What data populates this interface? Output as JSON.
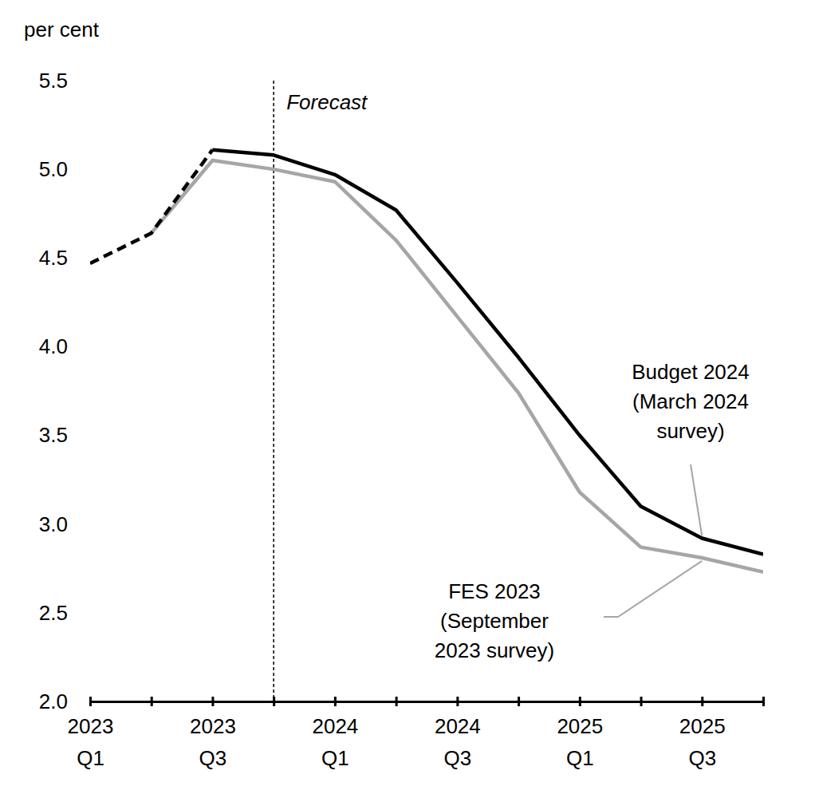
{
  "chart_data": {
    "type": "line",
    "y_label": "per cent",
    "categories": [
      "2023\nQ1",
      null,
      "2023\nQ3",
      null,
      "2024\nQ1",
      null,
      "2024\nQ3",
      null,
      "2025\nQ1",
      null,
      "2025\nQ3",
      null
    ],
    "series": [
      {
        "name": "FES 2023\n(September\n2023 survey)",
        "color": "#a6a6a6",
        "line_style": "solid",
        "values": [
          null,
          4.64,
          5.05,
          5.0,
          4.93,
          4.6,
          4.17,
          3.74,
          3.18,
          2.87,
          2.81,
          2.73
        ]
      },
      {
        "name": "Budget 2024\n(March 2024\nsurvey)",
        "color": "#000000",
        "line_style": "solid",
        "values": [
          null,
          null,
          5.11,
          5.08,
          4.97,
          4.77,
          4.36,
          3.94,
          3.5,
          3.1,
          2.92,
          2.83
        ]
      },
      {
        "color": "#000000",
        "line_style": "dashed",
        "values": [
          4.47,
          4.64,
          5.11,
          null,
          null,
          null,
          null,
          null,
          null,
          null,
          null,
          null
        ]
      }
    ],
    "ylim": [
      2,
      5.5
    ],
    "yticks": [
      {
        "value": 2,
        "label": "2.0"
      },
      2.5,
      {
        "value": 3,
        "label": "3.0"
      },
      3.5,
      {
        "value": 4,
        "label": "4.0"
      },
      4.5,
      {
        "value": 5,
        "label": "5.0"
      },
      5.5
    ],
    "grid": false,
    "annotations": [
      {
        "text": "Forecast",
        "category_index": 3
      }
    ]
  }
}
